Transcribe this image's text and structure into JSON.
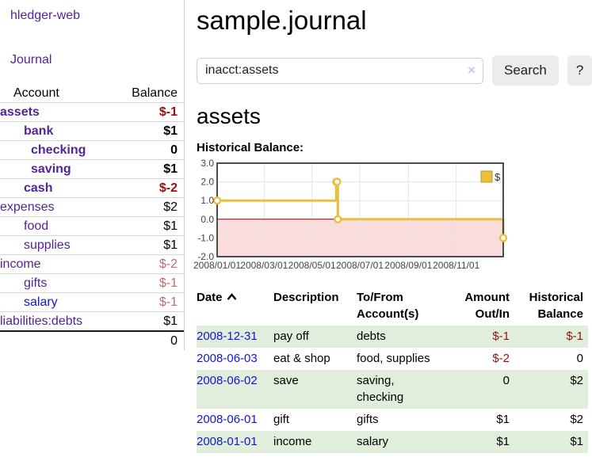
{
  "app": {
    "brand": "hledger-web"
  },
  "colors": {
    "accent_purple": "#51249b",
    "link_blue": "#1515d2",
    "negative_strong": "#a50d0d",
    "negative_muted": "#b96e6e",
    "register_negative": "#8f1414",
    "row_stripe_green": "#e0eedb",
    "chart_line_gold": "#e9bf3d",
    "chart_negative_fill": "#fbdcdc",
    "chart_zero_line": "#8b0000",
    "chart_grid": "#e3e3e3",
    "chart_border": "#4c4c4c",
    "chart_text": "#444444",
    "legend_swatch_border": "#bd9421"
  },
  "sidebar": {
    "nav": {
      "journal": "Journal"
    },
    "table": {
      "headers": [
        "Account",
        "Balance"
      ],
      "rows": [
        {
          "account": "assets",
          "balance": "$-1",
          "depth": 0,
          "bold": true,
          "balance_style": "neg-strong"
        },
        {
          "account": "bank",
          "balance": "$1",
          "depth": 1,
          "bold": true,
          "balance_style": "normal"
        },
        {
          "account": "checking",
          "balance": "0",
          "depth": 2,
          "bold": true,
          "balance_style": "normal"
        },
        {
          "account": "saving",
          "balance": "$1",
          "depth": 2,
          "bold": true,
          "balance_style": "normal"
        },
        {
          "account": "cash",
          "balance": "$-2",
          "depth": 1,
          "bold": true,
          "balance_style": "neg-strong"
        },
        {
          "account": "expenses",
          "balance": "$2",
          "depth": 0,
          "bold": false,
          "balance_style": "normal"
        },
        {
          "account": "food",
          "balance": "$1",
          "depth": 1,
          "bold": false,
          "balance_style": "normal"
        },
        {
          "account": "supplies",
          "balance": "$1",
          "depth": 1,
          "bold": false,
          "balance_style": "normal"
        },
        {
          "account": "income",
          "balance": "$-2",
          "depth": 0,
          "bold": false,
          "balance_style": "neg-muted"
        },
        {
          "account": "gifts",
          "balance": "$-1",
          "depth": 1,
          "bold": false,
          "balance_style": "neg-muted"
        },
        {
          "account": "salary",
          "balance": "$-1",
          "depth": 1,
          "bold": false,
          "balance_style": "neg-muted"
        },
        {
          "account": "liabilities:debts",
          "balance": "$1",
          "depth": 0,
          "bold": false,
          "balance_style": "normal"
        }
      ],
      "total": "0"
    }
  },
  "header": {
    "title": "sample.journal"
  },
  "search": {
    "value": "inacct:assets",
    "clear_icon": "×",
    "search_button": "Search",
    "help_button": "?"
  },
  "account_page": {
    "heading": "assets",
    "chart_label": "Historical Balance:"
  },
  "chart_data": {
    "type": "line",
    "step": true,
    "title": "Historical Balance",
    "legend": {
      "position": "ne",
      "entries": [
        "$"
      ]
    },
    "x_start": "2008-01-01",
    "x_end": "2008-12-31",
    "x_tick_labels": [
      "2008/01/01",
      "2008/03/01",
      "2008/05/01",
      "2008/07/01",
      "2008/09/01",
      "2008/11/01"
    ],
    "y_ticks": [
      3.0,
      2.0,
      1.0,
      0.0,
      -1.0,
      -2.0
    ],
    "y_tick_labels": [
      "3.0",
      "2.0",
      "1.0",
      "0.0",
      "-1.0",
      "-2.0"
    ],
    "ylim": [
      -2.0,
      3.0
    ],
    "grid": true,
    "negative_region_shaded": true,
    "series": [
      {
        "name": "$",
        "points": [
          [
            "2008-01-01",
            1
          ],
          [
            "2008-06-01",
            2
          ],
          [
            "2008-06-02",
            2
          ],
          [
            "2008-06-03",
            0
          ],
          [
            "2008-12-31",
            -1
          ]
        ]
      }
    ]
  },
  "register": {
    "headers": [
      "Date",
      "Description",
      "To/From\nAccount(s)",
      "Amount\nOut/In",
      "Historical\nBalance"
    ],
    "rows": [
      {
        "date": "2008-12-31",
        "description": "pay off",
        "accounts": "debts",
        "amount": "$-1",
        "balance": "$-1"
      },
      {
        "date": "2008-06-03",
        "description": "eat & shop",
        "accounts": "food, supplies",
        "amount": "$-2",
        "balance": "0"
      },
      {
        "date": "2008-06-02",
        "description": "save",
        "accounts": "saving,\nchecking",
        "amount": "0",
        "balance": "$2"
      },
      {
        "date": "2008-06-01",
        "description": "gift",
        "accounts": "gifts",
        "amount": "$1",
        "balance": "$2"
      },
      {
        "date": "2008-01-01",
        "description": "income",
        "accounts": "salary",
        "amount": "$1",
        "balance": "$1"
      }
    ]
  }
}
